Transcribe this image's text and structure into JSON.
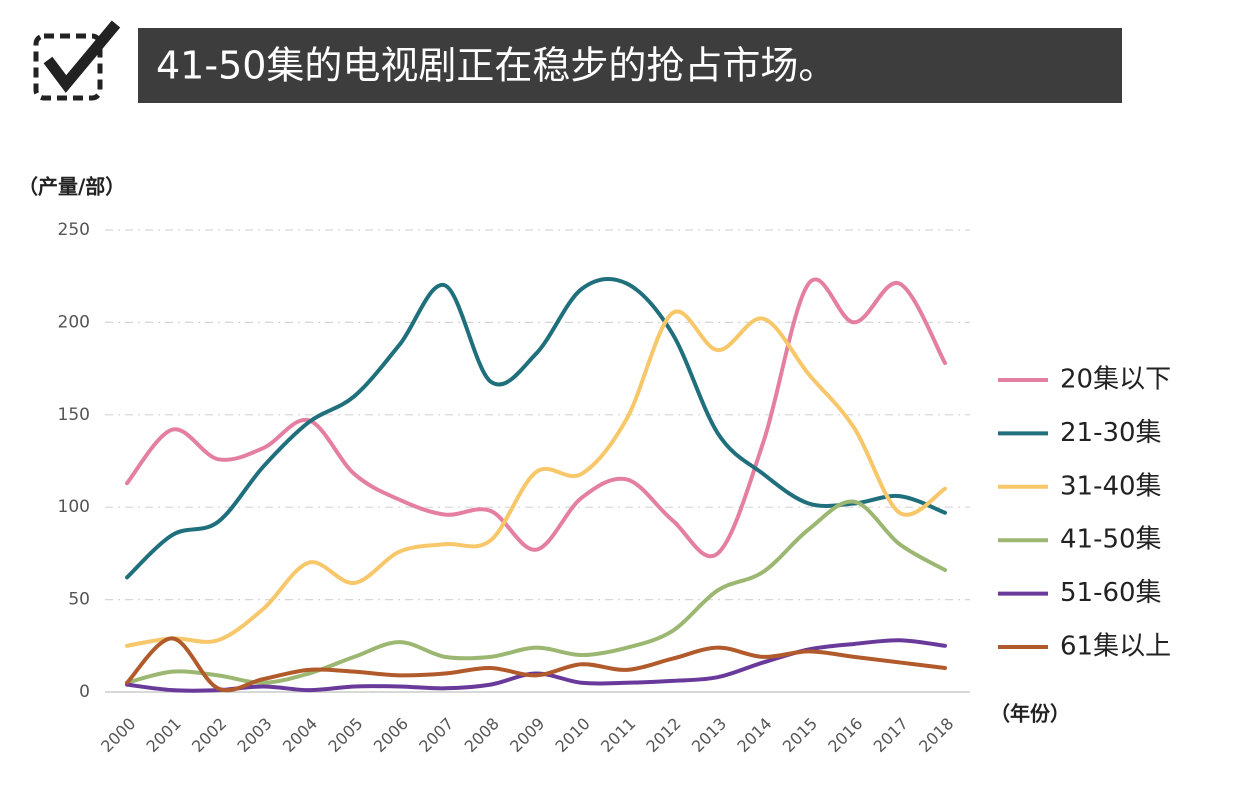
{
  "chart_data": {
    "type": "line",
    "title": "41-50集的电视剧正在稳步的抢占市场。",
    "y_label": "（产量/部）",
    "x_label": "（年份）",
    "categories": [
      "2000",
      "2001",
      "2002",
      "2003",
      "2004",
      "2005",
      "2006",
      "2007",
      "2008",
      "2009",
      "2010",
      "2011",
      "2012",
      "2013",
      "2014",
      "2015",
      "2016",
      "2017",
      "2018"
    ],
    "ylim": [
      0,
      250
    ],
    "yticks": [
      0,
      50,
      100,
      150,
      200,
      250
    ],
    "grid": true,
    "legend": "right",
    "series": [
      {
        "name": "20集以下",
        "color": "#e47fa1",
        "values": [
          113,
          142,
          126,
          132,
          147,
          118,
          104,
          96,
          98,
          77,
          105,
          115,
          93,
          75,
          135,
          221,
          200,
          221,
          178
        ]
      },
      {
        "name": "21-30集",
        "color": "#1f6f7c",
        "values": [
          62,
          85,
          92,
          122,
          146,
          160,
          188,
          220,
          168,
          183,
          218,
          221,
          194,
          140,
          118,
          102,
          102,
          106,
          97
        ]
      },
      {
        "name": "31-40集",
        "color": "#f7c76a",
        "values": [
          25,
          29,
          28,
          45,
          70,
          59,
          76,
          80,
          82,
          119,
          118,
          148,
          205,
          185,
          202,
          172,
          143,
          97,
          110
        ]
      },
      {
        "name": "41-50集",
        "color": "#9cb772",
        "values": [
          5,
          11,
          9,
          5,
          10,
          19,
          27,
          19,
          19,
          24,
          20,
          24,
          33,
          55,
          65,
          88,
          103,
          80,
          66
        ]
      },
      {
        "name": "51-60集",
        "color": "#6a3a9b",
        "values": [
          4,
          1,
          1,
          3,
          1,
          3,
          3,
          2,
          4,
          10,
          5,
          5,
          6,
          8,
          16,
          23,
          26,
          28,
          25
        ]
      },
      {
        "name": "61集以上",
        "color": "#b15a2b",
        "values": [
          5,
          29,
          2,
          7,
          12,
          11,
          9,
          10,
          13,
          9,
          15,
          12,
          18,
          24,
          19,
          22,
          19,
          16,
          13
        ]
      }
    ]
  }
}
